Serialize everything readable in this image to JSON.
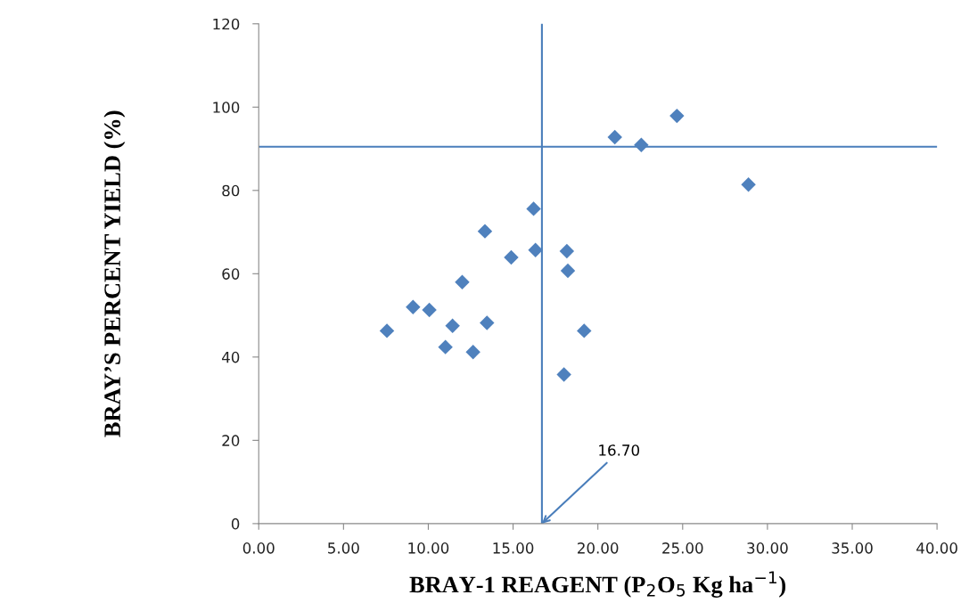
{
  "chart_data": {
    "type": "scatter",
    "xlabel": "BRAY-1 REAGENT (P$_{2}$O$_{5}$ Kg ha$^{−1}$)",
    "ylabel": "BRAY’S PERCENT YIELD (%)",
    "marker": "diamond",
    "grid": false,
    "x": [
      7.56,
      9.1,
      10.06,
      11.43,
      11.01,
      12.64,
      12.0,
      13.34,
      13.46,
      14.89,
      16.21,
      16.32,
      18.17,
      18.23,
      18.0,
      19.19,
      21.0,
      22.56,
      24.66,
      28.88
    ],
    "series": [
      {
        "color": "#4f81bd",
        "values": [
          46.3,
          52.0,
          51.3,
          47.5,
          42.4,
          41.2,
          58.0,
          70.2,
          48.2,
          63.9,
          75.6,
          65.7,
          65.4,
          60.7,
          35.8,
          46.3,
          92.8,
          90.9,
          97.9,
          81.4
        ]
      }
    ],
    "xlim": [
      0,
      40
    ],
    "xticks": [
      {
        "value": 0,
        "label": "0.00"
      },
      {
        "value": 5,
        "label": "5.00"
      },
      {
        "value": 10,
        "label": "10.00"
      },
      {
        "value": 15,
        "label": "15.00"
      },
      {
        "value": 20,
        "label": "20.00"
      },
      {
        "value": 25,
        "label": "25.00"
      },
      {
        "value": 30,
        "label": "30.00"
      },
      {
        "value": 35,
        "label": "35.00"
      },
      {
        "value": 40,
        "label": "40.00"
      }
    ],
    "ylim": [
      0,
      120
    ],
    "yticks": [
      0,
      20,
      40,
      60,
      80,
      100,
      120
    ],
    "ref_lines": [
      {
        "axis": "x",
        "value": 16.7,
        "color": "#4a7ebb"
      },
      {
        "axis": "y",
        "value": 90.5,
        "color": "#4a7ebb"
      }
    ],
    "annotations": [
      {
        "text": "16.70",
        "x": 16.7,
        "y": 0
      }
    ]
  }
}
